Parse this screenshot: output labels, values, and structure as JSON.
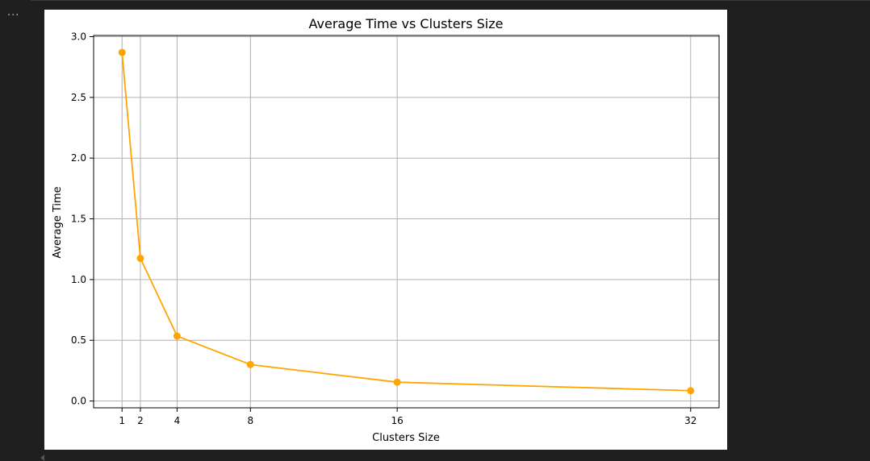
{
  "toolbar": {
    "more_label": "..."
  },
  "chart_data": {
    "type": "line",
    "title": "Average Time vs Clusters Size",
    "xlabel": "Clusters Size",
    "ylabel": "Average Time",
    "x": [
      1,
      2,
      4,
      8,
      16,
      32
    ],
    "xticks": [
      1,
      2,
      4,
      8,
      16,
      32
    ],
    "yticks": [
      0.0,
      0.5,
      1.0,
      1.5,
      2.0,
      2.5,
      3.0
    ],
    "ytick_labels": [
      "0.0",
      "0.5",
      "1.0",
      "1.5",
      "2.0",
      "2.5",
      "3.0"
    ],
    "xlim": [
      -0.55,
      33.55
    ],
    "ylim": [
      -0.056,
      3.01
    ],
    "grid": true,
    "series": [
      {
        "values": [
          2.87,
          1.175,
          0.535,
          0.3,
          0.155,
          0.085
        ],
        "color": "#ffa500",
        "marker": "circle"
      }
    ],
    "colors": {
      "line": "#ffa500",
      "grid": "#b0b0b0",
      "axes": "#000000",
      "text": "#000000"
    }
  }
}
